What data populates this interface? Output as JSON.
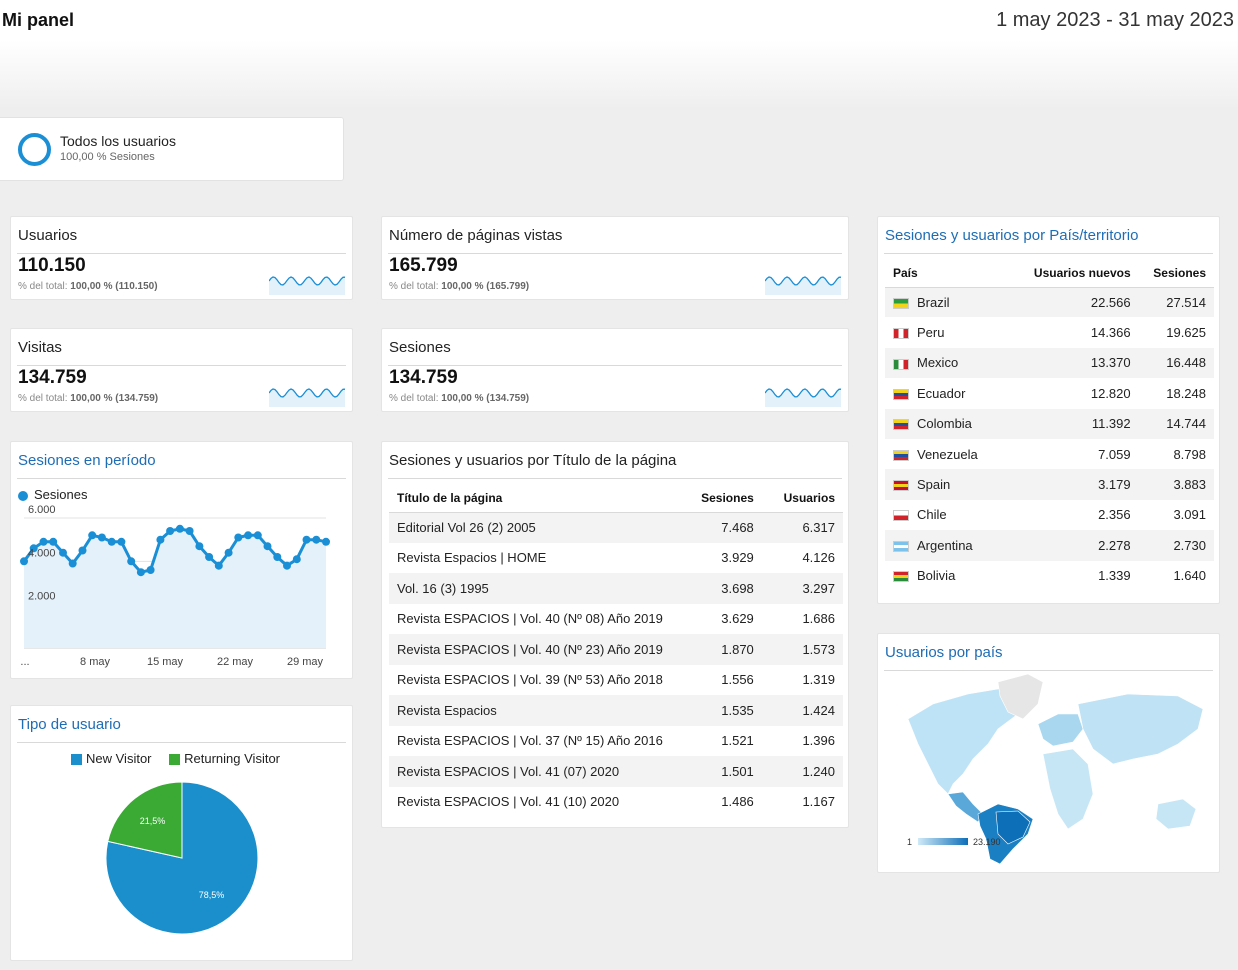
{
  "header": {
    "title": "Mi panel",
    "date_range": "1 may 2023 - 31 may 2023"
  },
  "segment": {
    "name": "Todos los usuarios",
    "sub": "100,00 % Sesiones"
  },
  "metrics": [
    {
      "title": "Usuarios",
      "value": "110.150",
      "sub_prefix": "% del total: ",
      "sub_bold": "100,00 % (110.150)"
    },
    {
      "title": "Número de páginas vistas",
      "value": "165.799",
      "sub_prefix": "% del total: ",
      "sub_bold": "100,00 % (165.799)"
    },
    {
      "title": "Visitas",
      "value": "134.759",
      "sub_prefix": "% del total: ",
      "sub_bold": "100,00 % (134.759)"
    },
    {
      "title": "Sesiones",
      "value": "134.759",
      "sub_prefix": "% del total: ",
      "sub_bold": "100,00 % (134.759)"
    }
  ],
  "sessions_period": {
    "title": "Sesiones en período",
    "legend": "Sesiones",
    "color": "#1a8fd6",
    "y_ticks": [
      "6.000",
      "4.000",
      "2.000"
    ],
    "x_ticks": [
      "...",
      "8 may",
      "15 may",
      "22 may",
      "29 may"
    ]
  },
  "user_type": {
    "title": "Tipo de usuario",
    "legend": [
      {
        "label": "New Visitor",
        "color": "#1a8fcc"
      },
      {
        "label": "Returning Visitor",
        "color": "#3aaa35"
      }
    ],
    "slice_labels": [
      "78,5%",
      "21,5%"
    ]
  },
  "pages_table": {
    "title": "Sesiones y usuarios por Título de la página",
    "columns": [
      "Título de la página",
      "Sesiones",
      "Usuarios"
    ],
    "rows": [
      [
        "Editorial Vol 26 (2) 2005",
        "7.468",
        "6.317"
      ],
      [
        "Revista Espacios | HOME",
        "3.929",
        "4.126"
      ],
      [
        "Vol. 16 (3) 1995",
        "3.698",
        "3.297"
      ],
      [
        "Revista ESPACIOS | Vol. 40 (Nº 08) Año 2019",
        "3.629",
        "1.686"
      ],
      [
        "Revista ESPACIOS | Vol. 40 (Nº 23) Año 2019",
        "1.870",
        "1.573"
      ],
      [
        "Revista ESPACIOS | Vol. 39 (Nº 53) Año 2018",
        "1.556",
        "1.319"
      ],
      [
        "Revista Espacios",
        "1.535",
        "1.424"
      ],
      [
        "Revista ESPACIOS | Vol. 37 (Nº 15) Año 2016",
        "1.521",
        "1.396"
      ],
      [
        "Revista ESPACIOS | Vol. 41 (07) 2020",
        "1.501",
        "1.240"
      ],
      [
        "Revista ESPACIOS | Vol. 41 (10) 2020",
        "1.486",
        "1.167"
      ]
    ]
  },
  "country_table": {
    "title": "Sesiones y usuarios por País/territorio",
    "columns": [
      "País",
      "Usuarios nuevos",
      "Sesiones"
    ],
    "rows": [
      [
        "Brazil",
        "22.566",
        "27.514"
      ],
      [
        "Peru",
        "14.366",
        "19.625"
      ],
      [
        "Mexico",
        "13.370",
        "16.448"
      ],
      [
        "Ecuador",
        "12.820",
        "18.248"
      ],
      [
        "Colombia",
        "11.392",
        "14.744"
      ],
      [
        "Venezuela",
        "7.059",
        "8.798"
      ],
      [
        "Spain",
        "3.179",
        "3.883"
      ],
      [
        "Chile",
        "2.356",
        "3.091"
      ],
      [
        "Argentina",
        "2.278",
        "2.730"
      ],
      [
        "Bolivia",
        "1.339",
        "1.640"
      ]
    ],
    "flags": [
      "flag-brazil-icon",
      "flag-peru-icon",
      "flag-mexico-icon",
      "flag-ecuador-icon",
      "flag-colombia-icon",
      "flag-venezuela-icon",
      "flag-spain-icon",
      "flag-chile-icon",
      "flag-argentina-icon",
      "flag-bolivia-icon"
    ]
  },
  "users_map": {
    "title": "Usuarios por país",
    "scale_min": "1",
    "scale_max": "23.190",
    "colors": {
      "low": "#b9e1f5",
      "high": "#0d6fb8",
      "none": "#e8e8e8"
    }
  },
  "chart_data": [
    {
      "type": "line",
      "title": "Sesiones en período",
      "series": [
        {
          "name": "Sesiones",
          "values": [
            4000,
            4600,
            4900,
            4900,
            4400,
            3900,
            4500,
            5200,
            5100,
            4900,
            4900,
            4000,
            3500,
            3600,
            5000,
            5400,
            5500,
            5400,
            4700,
            4200,
            3800,
            4400,
            5100,
            5200,
            5200,
            4700,
            4200,
            3800,
            4100,
            5000,
            5000,
            4900
          ]
        }
      ],
      "x_ticks": [
        "...",
        "8 may",
        "15 may",
        "22 may",
        "29 may"
      ],
      "ylim": [
        0,
        6000
      ],
      "y_ticks": [
        2000,
        4000,
        6000
      ]
    },
    {
      "type": "pie",
      "title": "Tipo de usuario",
      "categories": [
        "New Visitor",
        "Returning Visitor"
      ],
      "values": [
        78.5,
        21.5
      ]
    }
  ]
}
